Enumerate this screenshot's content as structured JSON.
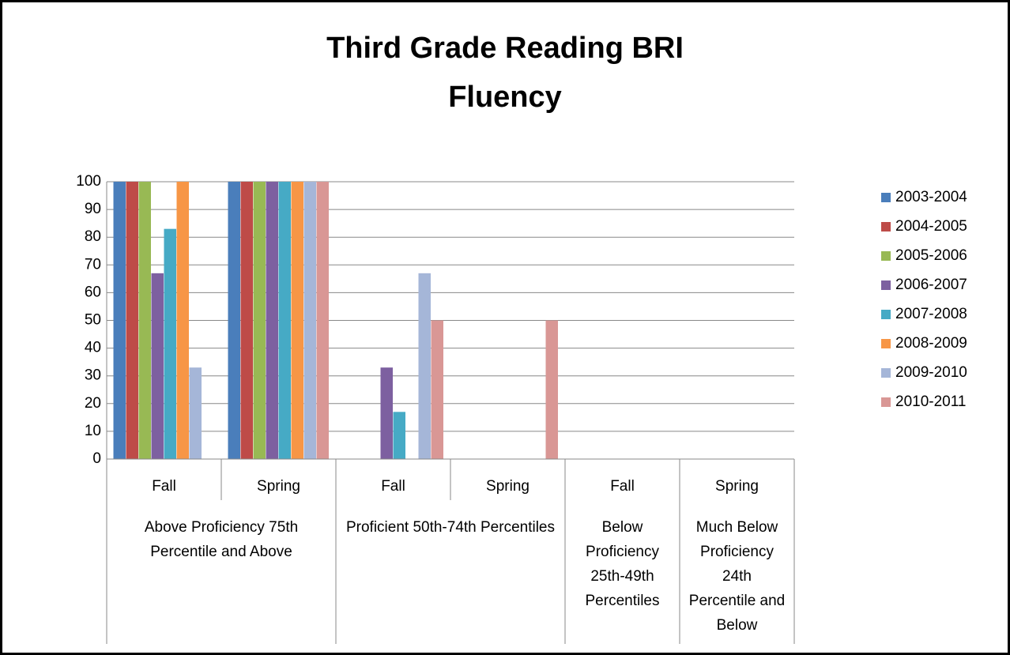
{
  "chart_data": {
    "type": "bar",
    "title": [
      "Third Grade Reading BRI",
      "Fluency"
    ],
    "categories": [
      "Fall",
      "Spring",
      "Fall",
      "Spring",
      "Fall",
      "Spring"
    ],
    "groups": [
      {
        "label": "Above Proficiency 75th Percentile and Above",
        "span": 2
      },
      {
        "label": "Proficient 50th-74th Percentiles",
        "span": 2
      },
      {
        "label": "Below Proficiency 25th-49th Percentiles",
        "span": 1
      },
      {
        "label": "Much Below Proficiency 24th Percentile and Below",
        "span": 1
      }
    ],
    "series": [
      {
        "name": "2003-2004",
        "color": "#4a7ebb",
        "values": [
          100,
          100,
          0,
          0,
          0,
          0
        ]
      },
      {
        "name": "2004-2005",
        "color": "#be4b48",
        "values": [
          100,
          100,
          0,
          0,
          0,
          0
        ]
      },
      {
        "name": "2005-2006",
        "color": "#98b954",
        "values": [
          100,
          100,
          0,
          0,
          0,
          0
        ]
      },
      {
        "name": "2006-2007",
        "color": "#7d60a0",
        "values": [
          67,
          100,
          33,
          0,
          0,
          0
        ]
      },
      {
        "name": "2007-2008",
        "color": "#46aac5",
        "values": [
          83,
          100,
          17,
          0,
          0,
          0
        ]
      },
      {
        "name": "2008-2009",
        "color": "#f79646",
        "values": [
          100,
          100,
          0,
          0,
          0,
          0
        ]
      },
      {
        "name": "2009-2010",
        "color": "#a5b6d8",
        "values": [
          33,
          100,
          67,
          0,
          0,
          0
        ]
      },
      {
        "name": "2010-2011",
        "color": "#d99795",
        "values": [
          0,
          100,
          50,
          50,
          0,
          0
        ]
      }
    ],
    "ylim": [
      0,
      100
    ],
    "yticks": [
      0,
      10,
      20,
      30,
      40,
      50,
      60,
      70,
      80,
      90,
      100
    ],
    "grid": true,
    "legend": "right"
  }
}
